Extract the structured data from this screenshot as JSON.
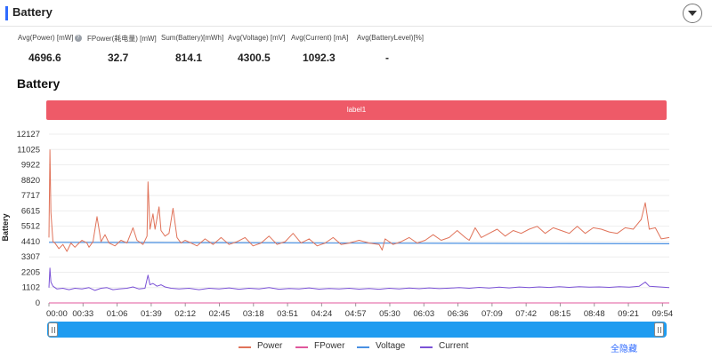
{
  "header": {
    "title": "Battery"
  },
  "stats": [
    {
      "label": "Avg(Power) [mW]",
      "value": "4696.6",
      "has_info": true
    },
    {
      "label": "FPower(耗电量) [mW]",
      "value": "32.7",
      "has_info": false
    },
    {
      "label": "Sum(Battery)[mWh]",
      "value": "814.1",
      "has_info": false
    },
    {
      "label": "Avg(Voltage) [mV]",
      "value": "4300.5",
      "has_info": false
    },
    {
      "label": "Avg(Current) [mA]",
      "value": "1092.3",
      "has_info": false
    },
    {
      "label": "Avg(BatteryLevel)[%]",
      "value": "-",
      "has_info": false
    }
  ],
  "section_title": "Battery",
  "label_bar": "label1",
  "legend": [
    {
      "name": "Power",
      "color": "#e0735a"
    },
    {
      "name": "FPower",
      "color": "#e0579c"
    },
    {
      "name": "Voltage",
      "color": "#4a90e2"
    },
    {
      "name": "Current",
      "color": "#7b52d6"
    }
  ],
  "hide_all_label": "全隐藏",
  "chart_data": {
    "type": "line",
    "ylabel": "Battery",
    "yticks": [
      0,
      1102,
      2205,
      3307,
      4410,
      5512,
      6615,
      7717,
      8820,
      9922,
      11025,
      12127
    ],
    "ylim": [
      0,
      12127
    ],
    "xticks": [
      "00:00",
      "00:33",
      "01:06",
      "01:39",
      "02:12",
      "02:45",
      "03:18",
      "03:51",
      "04:24",
      "04:57",
      "05:30",
      "06:03",
      "06:36",
      "07:09",
      "07:42",
      "08:15",
      "08:48",
      "09:21",
      "09:54"
    ],
    "xlim_seconds": [
      0,
      620
    ],
    "series": [
      {
        "name": "Power",
        "points": [
          [
            0,
            4700
          ],
          [
            1,
            11000
          ],
          [
            2,
            6500
          ],
          [
            4,
            4400
          ],
          [
            6,
            4300
          ],
          [
            10,
            3900
          ],
          [
            14,
            4200
          ],
          [
            18,
            3700
          ],
          [
            22,
            4300
          ],
          [
            26,
            4000
          ],
          [
            30,
            4300
          ],
          [
            33,
            4500
          ],
          [
            38,
            4300
          ],
          [
            40,
            4000
          ],
          [
            44,
            4400
          ],
          [
            48,
            6200
          ],
          [
            52,
            4400
          ],
          [
            56,
            4900
          ],
          [
            60,
            4300
          ],
          [
            66,
            4100
          ],
          [
            72,
            4500
          ],
          [
            78,
            4300
          ],
          [
            84,
            5400
          ],
          [
            88,
            4500
          ],
          [
            94,
            4200
          ],
          [
            98,
            4800
          ],
          [
            99,
            8700
          ],
          [
            101,
            5300
          ],
          [
            104,
            6400
          ],
          [
            106,
            5300
          ],
          [
            110,
            6900
          ],
          [
            112,
            5200
          ],
          [
            116,
            4800
          ],
          [
            120,
            5000
          ],
          [
            124,
            6800
          ],
          [
            128,
            4700
          ],
          [
            132,
            4300
          ],
          [
            136,
            4500
          ],
          [
            142,
            4300
          ],
          [
            148,
            4100
          ],
          [
            156,
            4600
          ],
          [
            164,
            4200
          ],
          [
            172,
            4700
          ],
          [
            180,
            4200
          ],
          [
            188,
            4400
          ],
          [
            196,
            4700
          ],
          [
            204,
            4100
          ],
          [
            212,
            4300
          ],
          [
            220,
            4800
          ],
          [
            228,
            4200
          ],
          [
            236,
            4400
          ],
          [
            244,
            5000
          ],
          [
            252,
            4300
          ],
          [
            260,
            4600
          ],
          [
            268,
            4100
          ],
          [
            276,
            4300
          ],
          [
            284,
            4700
          ],
          [
            292,
            4200
          ],
          [
            300,
            4300
          ],
          [
            310,
            4500
          ],
          [
            320,
            4300
          ],
          [
            330,
            4200
          ],
          [
            333,
            3800
          ],
          [
            336,
            4600
          ],
          [
            344,
            4200
          ],
          [
            352,
            4400
          ],
          [
            360,
            4700
          ],
          [
            368,
            4300
          ],
          [
            376,
            4500
          ],
          [
            384,
            4900
          ],
          [
            392,
            4500
          ],
          [
            400,
            4700
          ],
          [
            408,
            5200
          ],
          [
            416,
            4700
          ],
          [
            420,
            4500
          ],
          [
            426,
            5400
          ],
          [
            432,
            4700
          ],
          [
            440,
            5000
          ],
          [
            448,
            5300
          ],
          [
            456,
            4800
          ],
          [
            464,
            5200
          ],
          [
            472,
            5000
          ],
          [
            480,
            5300
          ],
          [
            488,
            5500
          ],
          [
            496,
            5000
          ],
          [
            504,
            5400
          ],
          [
            512,
            5200
          ],
          [
            520,
            5000
          ],
          [
            528,
            5500
          ],
          [
            536,
            5000
          ],
          [
            544,
            5400
          ],
          [
            552,
            5300
          ],
          [
            560,
            5100
          ],
          [
            568,
            5000
          ],
          [
            576,
            5400
          ],
          [
            584,
            5300
          ],
          [
            592,
            6000
          ],
          [
            596,
            7200
          ],
          [
            600,
            5300
          ],
          [
            606,
            5400
          ],
          [
            612,
            4600
          ],
          [
            620,
            4700
          ]
        ]
      },
      {
        "name": "FPower",
        "points": [
          [
            0,
            0
          ],
          [
            620,
            0
          ]
        ]
      },
      {
        "name": "Voltage",
        "points": [
          [
            0,
            4350
          ],
          [
            620,
            4250
          ]
        ]
      },
      {
        "name": "Current",
        "points": [
          [
            0,
            1100
          ],
          [
            1,
            2500
          ],
          [
            2,
            1500
          ],
          [
            4,
            1200
          ],
          [
            8,
            1000
          ],
          [
            14,
            1050
          ],
          [
            20,
            950
          ],
          [
            26,
            1050
          ],
          [
            33,
            1000
          ],
          [
            40,
            1100
          ],
          [
            46,
            900
          ],
          [
            52,
            1050
          ],
          [
            58,
            1100
          ],
          [
            64,
            950
          ],
          [
            70,
            1000
          ],
          [
            78,
            1050
          ],
          [
            84,
            1150
          ],
          [
            90,
            1000
          ],
          [
            96,
            1050
          ],
          [
            99,
            2000
          ],
          [
            101,
            1300
          ],
          [
            104,
            1400
          ],
          [
            108,
            1200
          ],
          [
            112,
            1300
          ],
          [
            116,
            1150
          ],
          [
            122,
            1050
          ],
          [
            130,
            1000
          ],
          [
            140,
            1050
          ],
          [
            150,
            950
          ],
          [
            160,
            1050
          ],
          [
            170,
            1000
          ],
          [
            180,
            1080
          ],
          [
            190,
            980
          ],
          [
            200,
            1050
          ],
          [
            210,
            1000
          ],
          [
            220,
            1100
          ],
          [
            230,
            980
          ],
          [
            240,
            1040
          ],
          [
            250,
            1000
          ],
          [
            260,
            1080
          ],
          [
            270,
            990
          ],
          [
            280,
            1040
          ],
          [
            290,
            1000
          ],
          [
            300,
            1050
          ],
          [
            310,
            990
          ],
          [
            320,
            1040
          ],
          [
            330,
            980
          ],
          [
            340,
            1050
          ],
          [
            350,
            1000
          ],
          [
            360,
            1070
          ],
          [
            370,
            1020
          ],
          [
            380,
            1080
          ],
          [
            390,
            1030
          ],
          [
            400,
            1060
          ],
          [
            410,
            1100
          ],
          [
            420,
            1050
          ],
          [
            430,
            1120
          ],
          [
            440,
            1070
          ],
          [
            450,
            1130
          ],
          [
            460,
            1080
          ],
          [
            470,
            1140
          ],
          [
            480,
            1100
          ],
          [
            490,
            1150
          ],
          [
            500,
            1110
          ],
          [
            510,
            1160
          ],
          [
            520,
            1120
          ],
          [
            530,
            1170
          ],
          [
            540,
            1130
          ],
          [
            550,
            1150
          ],
          [
            560,
            1120
          ],
          [
            570,
            1170
          ],
          [
            580,
            1130
          ],
          [
            590,
            1200
          ],
          [
            596,
            1500
          ],
          [
            600,
            1200
          ],
          [
            610,
            1150
          ],
          [
            620,
            1100
          ]
        ]
      }
    ]
  }
}
